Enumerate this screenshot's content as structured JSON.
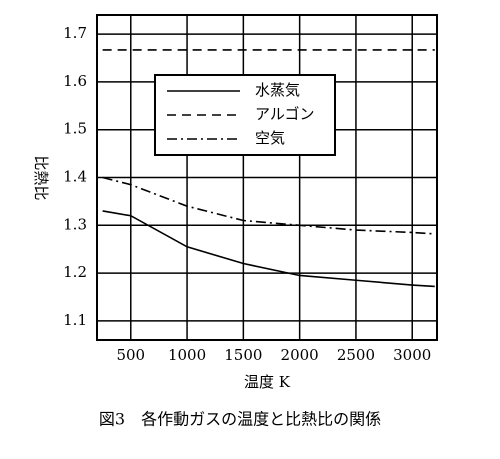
{
  "chart_data": {
    "type": "line",
    "caption": "図3　各作動ガスの温度と比熱比の関係",
    "xlabel": "温度 K",
    "ylabel": "比熱比",
    "x": [
      250,
      500,
      1000,
      1500,
      2000,
      2500,
      3000,
      3200
    ],
    "series": [
      {
        "name": "水蒸気",
        "color": "#000000",
        "style": "solid",
        "values": [
          1.33,
          1.32,
          1.255,
          1.22,
          1.195,
          1.185,
          1.175,
          1.172
        ]
      },
      {
        "name": "アルゴン",
        "color": "#000000",
        "style": "dashed",
        "values": [
          1.667,
          1.667,
          1.667,
          1.667,
          1.667,
          1.667,
          1.667,
          1.667
        ]
      },
      {
        "name": "空気",
        "color": "#000000",
        "style": "dashdot",
        "values": [
          1.4,
          1.385,
          1.34,
          1.31,
          1.3,
          1.29,
          1.285,
          1.282
        ]
      }
    ],
    "xlim": [
      200,
      3220
    ],
    "ylim": [
      1.06,
      1.74
    ],
    "xticks": [
      500,
      1000,
      1500,
      2000,
      2500,
      3000
    ],
    "yticks": [
      1.1,
      1.2,
      1.3,
      1.4,
      1.5,
      1.6,
      1.7
    ],
    "grid": true
  }
}
